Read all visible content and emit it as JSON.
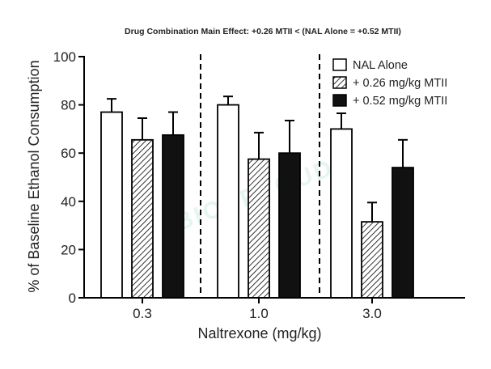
{
  "chart_data": {
    "type": "bar",
    "title": "Drug Combination Main  Effect: +0.26 MTII < (NAL Alone = +0.52 MTII)",
    "xlabel": "Naltrexone (mg/kg)",
    "ylabel": "% of Baseline Ethanol Consumption",
    "categories": [
      "0.3",
      "1.0",
      "3.0"
    ],
    "ylim": [
      0,
      100
    ],
    "yticks": [
      0,
      20,
      40,
      60,
      80,
      100
    ],
    "legend_position": "top-right",
    "grid": false,
    "group_dividers": "dashed vertical lines between dose groups",
    "series": [
      {
        "name": "NAL Alone",
        "values": [
          77,
          80,
          70
        ],
        "errors": [
          5.5,
          3.5,
          6.5
        ],
        "style": "white"
      },
      {
        "name": "+ 0.26 mg/kg MTII",
        "values": [
          65.5,
          57.5,
          31.5
        ],
        "errors": [
          9,
          11,
          8
        ],
        "style": "hatched"
      },
      {
        "name": "+ 0.52 mg/kg MTII",
        "values": [
          67.5,
          60,
          54
        ],
        "errors": [
          9.5,
          13.5,
          11.5
        ],
        "style": "black"
      }
    ]
  },
  "watermark": "BIOPRTOUD",
  "colors": {
    "axis": "#000000",
    "bar_white": "#ffffff",
    "bar_black": "#111111",
    "hatch": "#000000"
  }
}
